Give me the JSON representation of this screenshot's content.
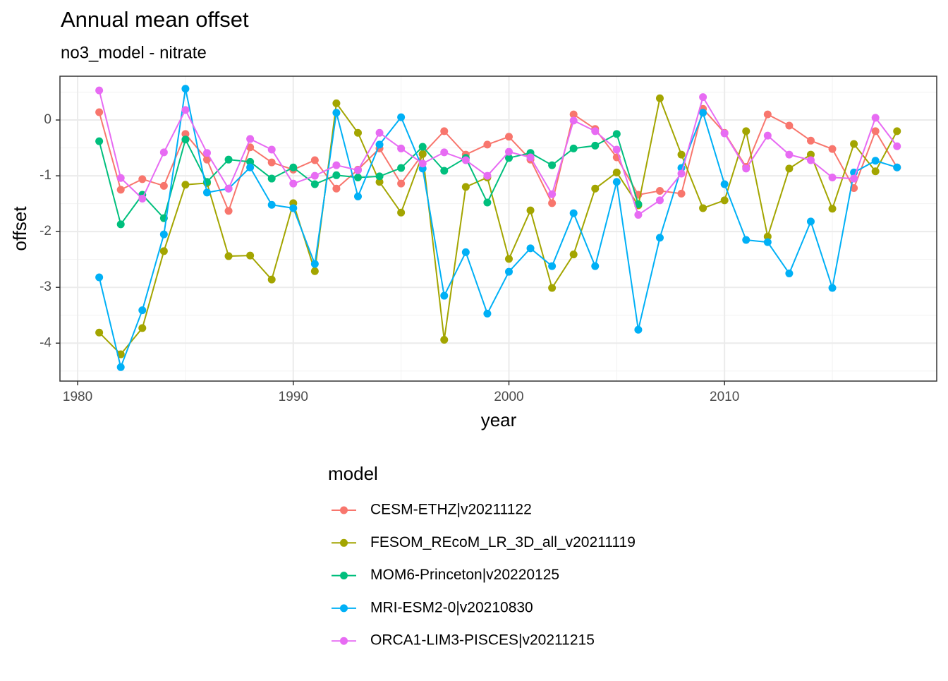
{
  "chart_data": {
    "type": "line",
    "title": "Annual mean offset",
    "subtitle": "no3_model - nitrate",
    "x_label": "year",
    "y_label": "offset",
    "x": [
      1981,
      1982,
      1983,
      1984,
      1985,
      1986,
      1987,
      1988,
      1989,
      1990,
      1991,
      1992,
      1993,
      1994,
      1995,
      1996,
      1997,
      1998,
      1999,
      2000,
      2001,
      2002,
      2003,
      2004,
      2005,
      2006,
      2007,
      2008,
      2009,
      2010,
      2011,
      2012,
      2013,
      2014,
      2015,
      2016,
      2017,
      2018
    ],
    "series": [
      {
        "name": "CESM-ETHZ|v20211122",
        "color": "#F8766D",
        "values": [
          0.14,
          -1.25,
          -1.06,
          -1.18,
          -0.25,
          -0.71,
          -1.63,
          -0.49,
          -0.76,
          -0.89,
          -0.72,
          -1.23,
          -0.89,
          -0.51,
          -1.14,
          -0.61,
          -0.2,
          -0.62,
          -0.44,
          -0.3,
          -0.71,
          -1.49,
          0.1,
          -0.16,
          -0.67,
          -1.34,
          -1.27,
          -1.32,
          0.2,
          -0.23,
          -0.84,
          0.1,
          -0.1,
          -0.37,
          -0.52,
          -1.22,
          -0.2,
          -0.85
        ]
      },
      {
        "name": "FESOM_REcoM_LR_3D_all_v20211119",
        "color": "#A3A500",
        "values": [
          -3.81,
          -4.2,
          -3.73,
          -2.35,
          -1.16,
          -1.13,
          -2.44,
          -2.43,
          -2.86,
          -1.49,
          -2.71,
          0.3,
          -0.23,
          -1.11,
          -1.66,
          -0.61,
          -3.94,
          -1.2,
          -1.03,
          -2.49,
          -1.62,
          -3.01,
          -2.41,
          -1.23,
          -0.94,
          -1.53,
          0.39,
          -0.62,
          -1.58,
          -1.44,
          -0.2,
          -2.09,
          -0.87,
          -0.62,
          -1.59,
          -0.43,
          -0.92,
          -0.2
        ]
      },
      {
        "name": "MOM6-Princeton|v20220125",
        "color": "#00BF7D",
        "values": [
          -0.38,
          -1.87,
          -1.34,
          -1.76,
          -0.35,
          -1.11,
          -0.71,
          -0.75,
          -1.05,
          -0.85,
          -1.15,
          -0.99,
          -1.03,
          -1.01,
          -0.86,
          -0.48,
          -0.91,
          -0.68,
          -1.48,
          -0.68,
          -0.59,
          -0.81,
          -0.51,
          -0.46,
          -0.25,
          -1.51,
          null,
          null,
          null,
          null,
          null,
          null,
          null,
          null,
          null,
          null,
          null,
          null
        ]
      },
      {
        "name": "MRI-ESM2-0|v20210830",
        "color": "#00B0F6",
        "values": [
          -2.82,
          -4.43,
          -3.41,
          -2.05,
          0.56,
          -1.3,
          -1.23,
          -0.85,
          -1.52,
          -1.58,
          -2.58,
          0.13,
          -1.37,
          -0.44,
          0.05,
          -0.87,
          -3.15,
          -2.37,
          -3.47,
          -2.72,
          -2.3,
          -2.62,
          -1.67,
          -2.62,
          -1.11,
          -3.76,
          -2.11,
          -0.86,
          0.13,
          -1.15,
          -2.15,
          -2.19,
          -2.75,
          -1.82,
          -3.01,
          -0.94,
          -0.73,
          -0.85
        ]
      },
      {
        "name": "ORCA1-LIM3-PISCES|v20211215",
        "color": "#E76BF3",
        "values": [
          0.53,
          -1.04,
          -1.41,
          -0.58,
          0.18,
          -0.59,
          -1.23,
          -0.34,
          -0.53,
          -1.14,
          -1.0,
          -0.81,
          -0.9,
          -0.23,
          -0.51,
          -0.78,
          -0.58,
          -0.72,
          -1.0,
          -0.57,
          -0.67,
          -1.33,
          -0.01,
          -0.2,
          -0.53,
          -1.7,
          -1.44,
          -0.96,
          0.41,
          -0.24,
          -0.87,
          -0.28,
          -0.62,
          -0.72,
          -1.03,
          -1.05,
          0.04,
          -0.47
        ]
      }
    ],
    "xlim": [
      1979.18,
      2019.84
    ],
    "ylim": [
      -4.68,
      0.785
    ],
    "xticks": [
      1980,
      1990,
      2000,
      2010
    ],
    "yticks": [
      0,
      -1,
      -2,
      -3,
      -4
    ],
    "grid": true,
    "legend": {
      "title": "model",
      "position": "bottom"
    }
  }
}
